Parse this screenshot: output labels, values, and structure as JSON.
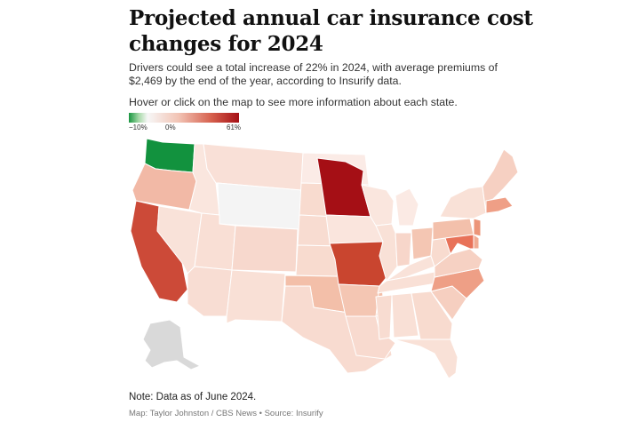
{
  "title": "Projected annual car insurance cost changes for 2024",
  "subtitle": "Drivers could see a total increase of 22% in 2024, with average premiums of $2,469 by the end of the year, according to Insurify data.",
  "instruction": "Hover or click on the map to see more information about each state.",
  "legend": {
    "labels": [
      "−10%",
      "0%",
      "61%"
    ],
    "colors": {
      "low": "#1a9641",
      "mid": "#f7f7f7",
      "high": "#a50f15"
    }
  },
  "note": "Note: Data as of June 2024.",
  "credit": "Map: Taylor Johnston / CBS News • Source: Insurify",
  "map": {
    "states": [
      {
        "id": "WA",
        "fill": "#12923e"
      },
      {
        "id": "OR",
        "fill": "#f2b9a6"
      },
      {
        "id": "CA",
        "fill": "#cc4a38"
      },
      {
        "id": "NV",
        "fill": "#f9e2d9"
      },
      {
        "id": "ID",
        "fill": "#fae6de"
      },
      {
        "id": "MT",
        "fill": "#f9e0d7"
      },
      {
        "id": "WY",
        "fill": "#f4f4f4"
      },
      {
        "id": "UT",
        "fill": "#f9dfd5"
      },
      {
        "id": "AZ",
        "fill": "#f8ddd3"
      },
      {
        "id": "CO",
        "fill": "#f7d8cd"
      },
      {
        "id": "NM",
        "fill": "#f9e0d6"
      },
      {
        "id": "ND",
        "fill": "#fbebe6"
      },
      {
        "id": "SD",
        "fill": "#f8dbcf"
      },
      {
        "id": "NE",
        "fill": "#f8dcd1"
      },
      {
        "id": "KS",
        "fill": "#f8dbcf"
      },
      {
        "id": "OK",
        "fill": "#f3bfa9"
      },
      {
        "id": "TX",
        "fill": "#f8dbd0"
      },
      {
        "id": "MN",
        "fill": "#a50f15"
      },
      {
        "id": "IA",
        "fill": "#fae5dd"
      },
      {
        "id": "MO",
        "fill": "#c9452f"
      },
      {
        "id": "AR",
        "fill": "#f4c6b3"
      },
      {
        "id": "LA",
        "fill": "#f8dacf"
      },
      {
        "id": "WI",
        "fill": "#fae6de"
      },
      {
        "id": "IL",
        "fill": "#f9e1d7"
      },
      {
        "id": "MI",
        "fill": "#fbeae4"
      },
      {
        "id": "IN",
        "fill": "#f7d6ca"
      },
      {
        "id": "OH",
        "fill": "#f4c6b3"
      },
      {
        "id": "KY",
        "fill": "#f9e2d9"
      },
      {
        "id": "TN",
        "fill": "#f9e0d6"
      },
      {
        "id": "MS",
        "fill": "#f8dcd1"
      },
      {
        "id": "AL",
        "fill": "#f9e0d6"
      },
      {
        "id": "GA",
        "fill": "#f8dbcf"
      },
      {
        "id": "FL",
        "fill": "#f9e1d7"
      },
      {
        "id": "SC",
        "fill": "#f6cfc0"
      },
      {
        "id": "NC",
        "fill": "#ee9f86"
      },
      {
        "id": "VA",
        "fill": "#f6d1c3"
      },
      {
        "id": "WV",
        "fill": "#f8dbcf"
      },
      {
        "id": "PA",
        "fill": "#f3c0ab"
      },
      {
        "id": "NY",
        "fill": "#f9e1d7"
      },
      {
        "id": "NJ",
        "fill": "#ec9579"
      },
      {
        "id": "MD",
        "fill": "#e87259"
      },
      {
        "id": "DE",
        "fill": "#f0ab93"
      },
      {
        "id": "New England",
        "fill": "#f6d0c2"
      },
      {
        "id": "MA",
        "fill": "#ef9f86"
      },
      {
        "id": "AK",
        "fill": "#d9d9d9"
      }
    ]
  }
}
